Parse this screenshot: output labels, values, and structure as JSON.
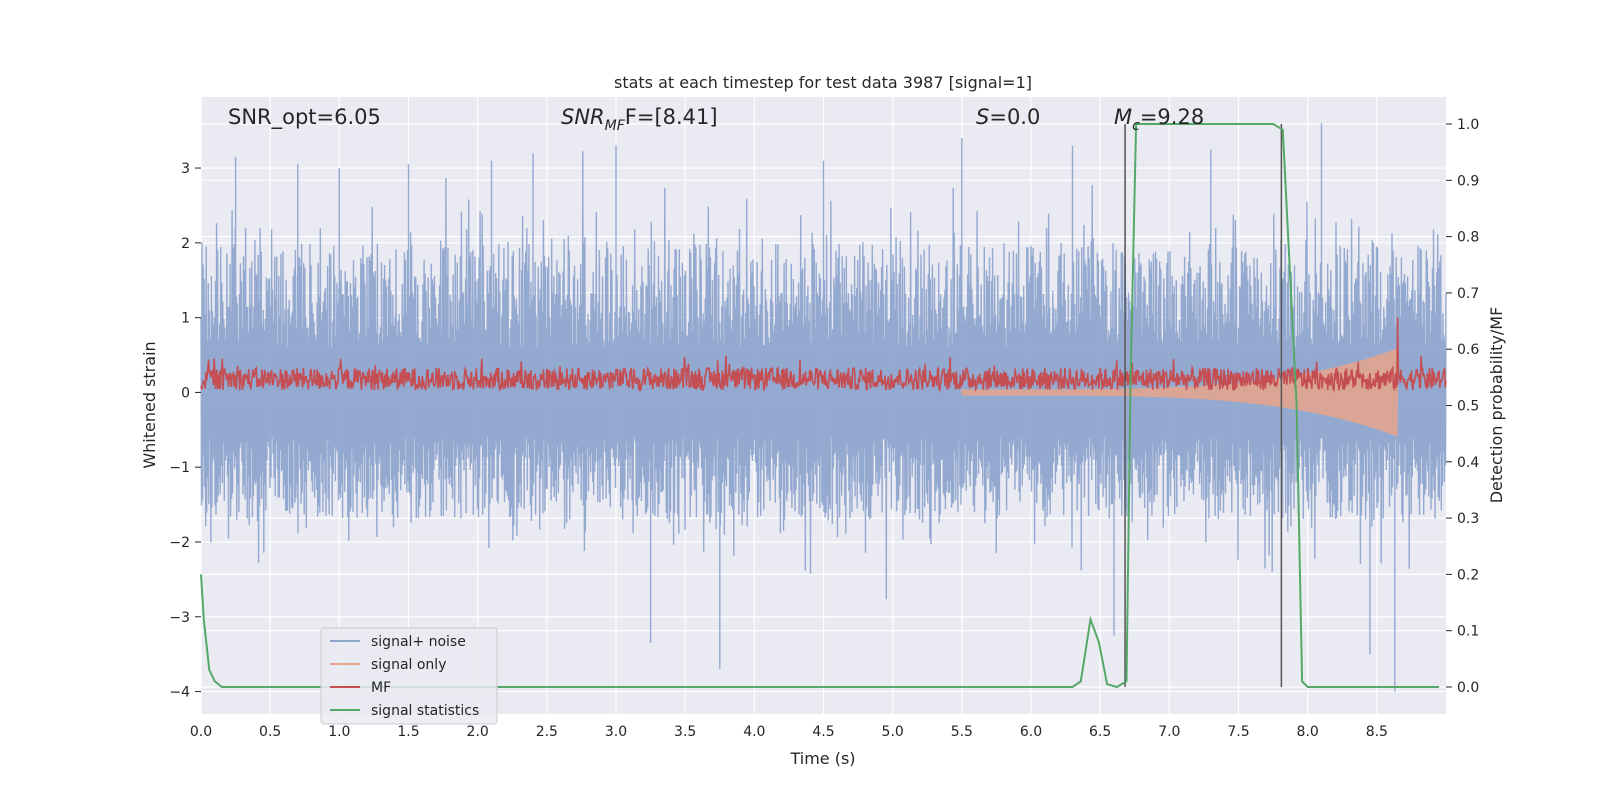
{
  "chart_data": {
    "type": "line",
    "title": "stats at each timestep for test data 3987 [signal=1]",
    "xlabel": "Time (s)",
    "ylabel": "Whitened strain",
    "y2label": "Detection probability/MF",
    "xlim": [
      0.0,
      9.0
    ],
    "ylim": [
      -4.3,
      3.95
    ],
    "y2lim": [
      -0.048,
      1.048
    ],
    "xticks": [
      "0.0",
      "0.5",
      "1.0",
      "1.5",
      "2.0",
      "2.5",
      "3.0",
      "3.5",
      "4.0",
      "4.5",
      "5.0",
      "5.5",
      "6.0",
      "6.5",
      "7.0",
      "7.5",
      "8.0",
      "8.5"
    ],
    "yticks": [
      "3",
      "2",
      "1",
      "0",
      "−1",
      "−2",
      "−3",
      "−4"
    ],
    "y2ticks": [
      "1.0",
      "0.9",
      "0.8",
      "0.7",
      "0.6",
      "0.5",
      "0.4",
      "0.3",
      "0.2",
      "0.1",
      "0.0"
    ],
    "grid": true,
    "legend_position": "lower-left",
    "annotations": {
      "snr_opt": "SNR_opt=6.05",
      "snr_mf_main": "SNR",
      "snr_mf_sub": "MF",
      "snr_mf_rest": "F=[8.41]",
      "s_main": "S",
      "s_rest": "=0.0",
      "mc_main": "M",
      "mc_sub": "c",
      "mc_rest": "=9.28"
    },
    "vlines_x": [
      6.68,
      7.81
    ],
    "series": [
      {
        "name": "signal+ noise",
        "color": "#8fa5cd",
        "axis": "left",
        "kind": "noise",
        "envelope_typical": [
          -1.7,
          2.0
        ],
        "extreme_peaks_x": [
          0.25,
          0.7,
          1.0,
          1.5,
          2.1,
          2.4,
          3.0,
          3.25,
          3.75,
          4.5,
          5.5,
          6.3,
          6.6,
          7.3,
          8.1,
          8.45,
          8.63
        ],
        "extreme_peaks_y": [
          3.15,
          3.05,
          3.0,
          3.05,
          3.1,
          3.2,
          3.3,
          -3.35,
          -3.7,
          3.1,
          3.4,
          3.3,
          -3.25,
          3.25,
          3.6,
          -3.5,
          -4.0
        ]
      },
      {
        "name": "signal only",
        "color": "#e8a58c",
        "axis": "left",
        "kind": "chirp",
        "start_x": 5.5,
        "peak_x": 8.65,
        "peak_amplitude": 0.55
      },
      {
        "name": "MF",
        "color": "#c44e52",
        "axis": "left",
        "kind": "band",
        "band": [
          0.0,
          0.35
        ],
        "spike_x": 8.65,
        "spike_y": 1.0
      },
      {
        "name": "signal statistics",
        "color": "#55a868",
        "axis": "right",
        "x": [
          0.0,
          0.02,
          0.06,
          0.1,
          0.15,
          0.25,
          0.5,
          1.0,
          2.0,
          3.0,
          4.0,
          5.0,
          6.0,
          6.3,
          6.36,
          6.43,
          6.49,
          6.55,
          6.62,
          6.69,
          6.72,
          6.76,
          7.0,
          7.5,
          7.75,
          7.82,
          7.92,
          7.96,
          8.0,
          8.2,
          8.5,
          8.95
        ],
        "y": [
          0.2,
          0.12,
          0.03,
          0.01,
          0.0,
          0.0,
          0.0,
          0.0,
          0.0,
          0.0,
          0.0,
          0.0,
          0.0,
          0.0,
          0.01,
          0.12,
          0.08,
          0.005,
          0.0,
          0.01,
          0.55,
          1.0,
          1.0,
          1.0,
          1.0,
          0.99,
          0.5,
          0.01,
          0.0,
          0.0,
          0.0,
          0.0
        ]
      }
    ]
  }
}
